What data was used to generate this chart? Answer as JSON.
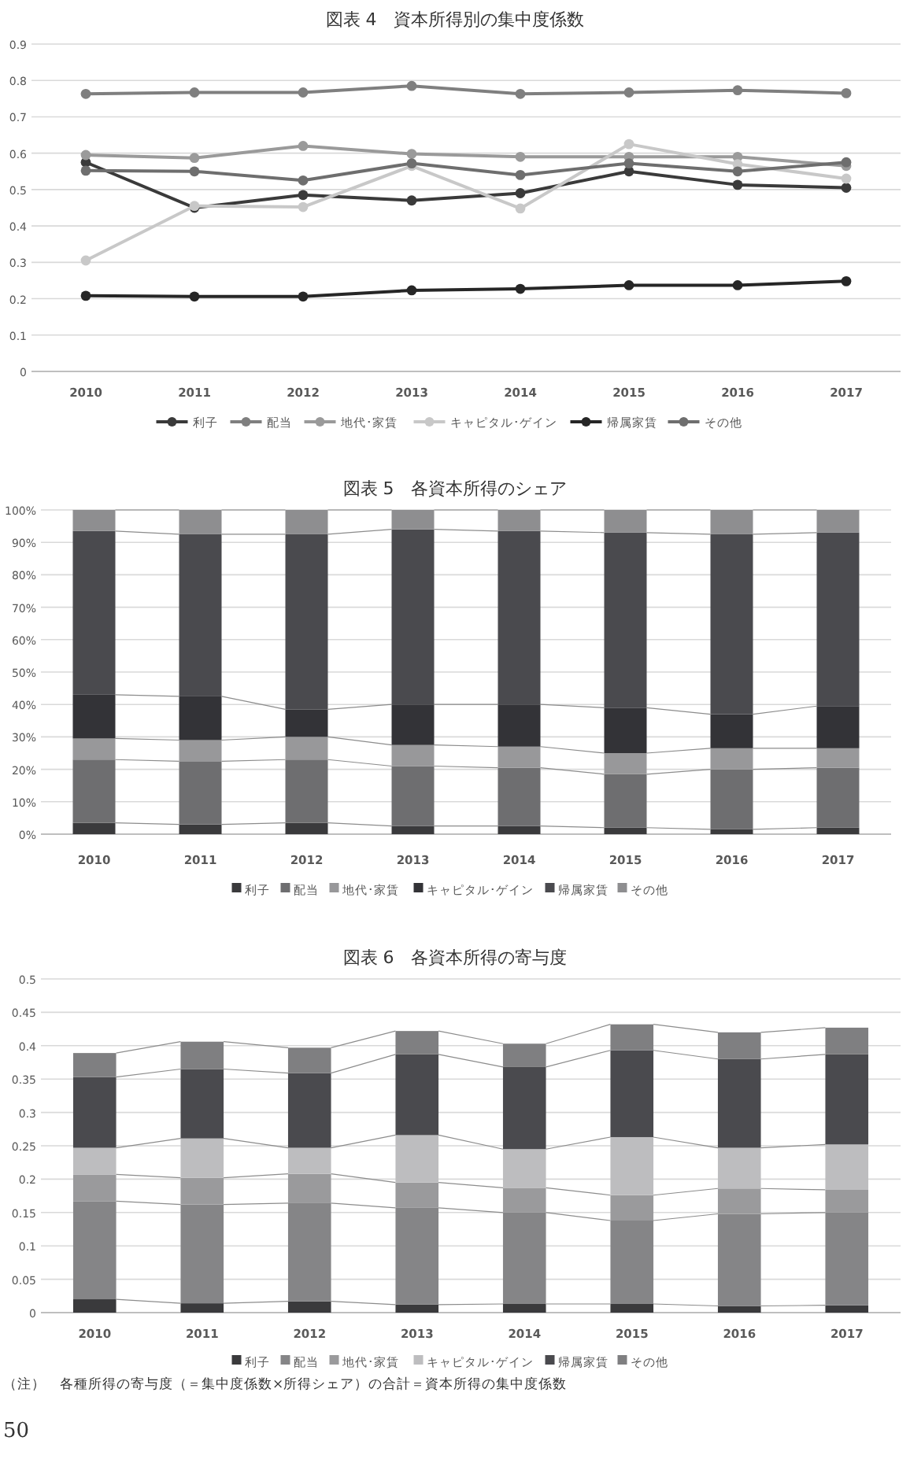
{
  "chart_data": [
    {
      "type": "line",
      "title": "図表 4　資本所得別の集中度係数",
      "categories": [
        "2010",
        "2011",
        "2012",
        "2013",
        "2014",
        "2015",
        "2016",
        "2017"
      ],
      "ylim": [
        0,
        0.9
      ],
      "yticks": [
        0,
        0.1,
        0.2,
        0.3,
        0.4,
        0.5,
        0.6,
        0.7,
        0.8,
        0.9
      ],
      "grid": "y",
      "legend": "bottom",
      "marker": "circle",
      "line_style": "solid",
      "series": [
        {
          "name": "利子",
          "color": "#3a3a3a",
          "values": [
            0.575,
            0.45,
            0.485,
            0.47,
            0.49,
            0.55,
            0.513,
            0.505
          ]
        },
        {
          "name": "配当",
          "color": "#7f7f7f",
          "values": [
            0.763,
            0.767,
            0.767,
            0.785,
            0.763,
            0.767,
            0.773,
            0.765
          ]
        },
        {
          "name": "地代･家賃",
          "color": "#9a9a9a",
          "values": [
            0.595,
            0.587,
            0.62,
            0.598,
            0.59,
            0.59,
            0.59,
            0.565
          ]
        },
        {
          "name": "キャピタル･ゲイン",
          "color": "#c8c8c8",
          "values": [
            0.305,
            0.455,
            0.452,
            0.565,
            0.448,
            0.625,
            0.57,
            0.53
          ]
        },
        {
          "name": "帰属家賃",
          "color": "#262626",
          "values": [
            0.208,
            0.206,
            0.206,
            0.223,
            0.227,
            0.237,
            0.237,
            0.248
          ]
        },
        {
          "name": "その他",
          "color": "#6e6e6e",
          "values": [
            0.552,
            0.55,
            0.525,
            0.572,
            0.54,
            0.572,
            0.55,
            0.575
          ]
        }
      ]
    },
    {
      "type": "bar",
      "stacked": true,
      "title": "図表 5　各資本所得のシェア",
      "categories": [
        "2010",
        "2011",
        "2012",
        "2013",
        "2014",
        "2015",
        "2016",
        "2017"
      ],
      "ylim": [
        0,
        100
      ],
      "yticks": [
        {
          "value": 0,
          "label": "0%"
        },
        {
          "value": 10,
          "label": "10%"
        },
        {
          "value": 20,
          "label": "20%"
        },
        {
          "value": 30,
          "label": "30%"
        },
        {
          "value": 40,
          "label": "40%"
        },
        {
          "value": 50,
          "label": "50%"
        },
        {
          "value": 60,
          "label": "60%"
        },
        {
          "value": 70,
          "label": "70%"
        },
        {
          "value": 80,
          "label": "80%"
        },
        {
          "value": 90,
          "label": "90%"
        },
        {
          "value": 100,
          "label": "100%"
        }
      ],
      "grid": "y",
      "legend": "bottom",
      "series": [
        {
          "name": "利子",
          "color": "#3a3a3c",
          "values": [
            3.5,
            3,
            3.5,
            2.5,
            2.5,
            2,
            1.5,
            2
          ]
        },
        {
          "name": "配当",
          "color": "#6e6e70",
          "values": [
            19.5,
            19.5,
            19.5,
            18.5,
            18,
            16.5,
            18.5,
            18.5
          ]
        },
        {
          "name": "地代･家賃",
          "color": "#98989a",
          "values": [
            6.5,
            6.5,
            7,
            6.5,
            6.5,
            6.5,
            6.5,
            6
          ]
        },
        {
          "name": "キャピタル･ゲイン",
          "color": "#333337",
          "values": [
            13.5,
            13.5,
            8.5,
            12.5,
            13,
            14,
            10.5,
            13
          ]
        },
        {
          "name": "帰属家賃",
          "color": "#4a4a4e",
          "values": [
            50.5,
            50,
            54,
            54,
            53.5,
            54,
            55.5,
            53.5
          ]
        },
        {
          "name": "その他",
          "color": "#8e8e90",
          "values": [
            6.5,
            7.5,
            7.5,
            6,
            6.5,
            7,
            7.5,
            7
          ]
        }
      ]
    },
    {
      "type": "bar",
      "stacked": true,
      "title": "図表 6　各資本所得の寄与度",
      "categories": [
        "2010",
        "2011",
        "2012",
        "2013",
        "2014",
        "2015",
        "2016",
        "2017"
      ],
      "ylim": [
        0,
        0.5
      ],
      "yticks": [
        0,
        0.05,
        0.1,
        0.15,
        0.2,
        0.25,
        0.3,
        0.35,
        0.4,
        0.45,
        0.5
      ],
      "grid": "y",
      "legend": "bottom",
      "annotations": [
        "（注）　各種所得の寄与度（＝集中度係数×所得シェア）の合計＝資本所得の集中度係数",
        "50"
      ],
      "series": [
        {
          "name": "利子",
          "color": "#3a3a3c",
          "values": [
            0.02,
            0.014,
            0.017,
            0.012,
            0.013,
            0.013,
            0.01,
            0.011
          ]
        },
        {
          "name": "配当",
          "color": "#858587",
          "values": [
            0.147,
            0.148,
            0.147,
            0.145,
            0.137,
            0.125,
            0.138,
            0.139
          ]
        },
        {
          "name": "地代･家賃",
          "color": "#9a9a9c",
          "values": [
            0.04,
            0.04,
            0.044,
            0.038,
            0.037,
            0.038,
            0.038,
            0.034
          ]
        },
        {
          "name": "キャピタル･ゲイン",
          "color": "#bdbdbf",
          "values": [
            0.04,
            0.059,
            0.039,
            0.071,
            0.058,
            0.087,
            0.061,
            0.068
          ]
        },
        {
          "name": "帰属家賃",
          "color": "#4a4a4e",
          "values": [
            0.106,
            0.104,
            0.112,
            0.121,
            0.123,
            0.13,
            0.133,
            0.135
          ]
        },
        {
          "name": "その他",
          "color": "#7f7f81",
          "values": [
            0.036,
            0.041,
            0.038,
            0.035,
            0.035,
            0.039,
            0.04,
            0.04
          ]
        }
      ]
    }
  ]
}
